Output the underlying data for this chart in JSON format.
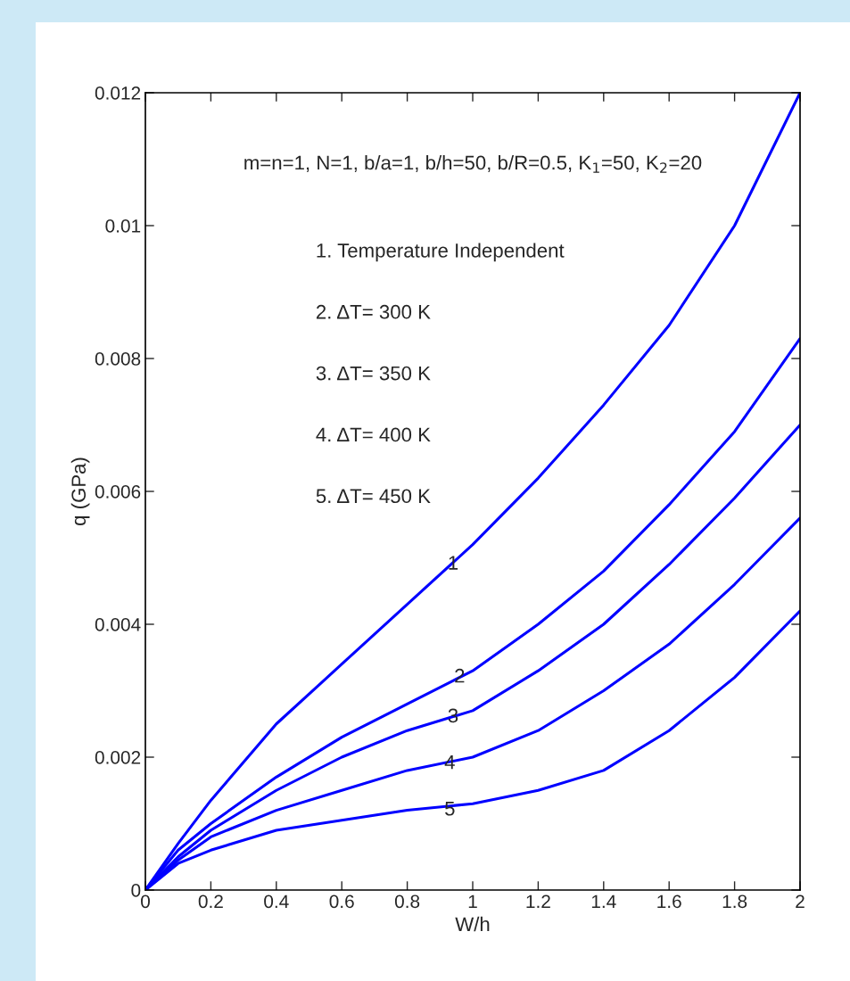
{
  "chart_data": {
    "type": "line",
    "xlabel": "W/h",
    "ylabel": "q (GPa)",
    "x": [
      0,
      0.1,
      0.2,
      0.4,
      0.6,
      0.8,
      1.0,
      1.2,
      1.4,
      1.6,
      1.8,
      2.0
    ],
    "series": [
      {
        "color": "#0000ff",
        "values": [
          0,
          0.0007,
          0.00135,
          0.0025,
          0.0034,
          0.0043,
          0.0052,
          0.0062,
          0.0073,
          0.0085,
          0.01,
          0.012
        ]
      },
      {
        "color": "#0000ff",
        "values": [
          0,
          0.0006,
          0.001,
          0.0017,
          0.0023,
          0.0028,
          0.0033,
          0.004,
          0.0048,
          0.0058,
          0.0069,
          0.0083
        ]
      },
      {
        "color": "#0000ff",
        "values": [
          0,
          0.0005,
          0.0009,
          0.0015,
          0.002,
          0.0024,
          0.0027,
          0.0033,
          0.004,
          0.0049,
          0.0059,
          0.007
        ]
      },
      {
        "color": "#0000ff",
        "values": [
          0,
          0.00045,
          0.0008,
          0.0012,
          0.0015,
          0.0018,
          0.002,
          0.0024,
          0.003,
          0.0037,
          0.0046,
          0.0056
        ]
      },
      {
        "color": "#0000ff",
        "values": [
          0,
          0.0004,
          0.0006,
          0.0009,
          0.00105,
          0.0012,
          0.0013,
          0.0015,
          0.0018,
          0.0024,
          0.0032,
          0.0042
        ]
      }
    ],
    "xlim": [
      0,
      2
    ],
    "ylim": [
      0,
      0.012
    ],
    "xticks": [
      0,
      0.2,
      0.4,
      0.6,
      0.8,
      1,
      1.2,
      1.4,
      1.6,
      1.8,
      2
    ],
    "yticks": [
      0,
      0.002,
      0.004,
      0.006,
      0.008,
      0.01,
      0.012
    ],
    "grid": false,
    "legend": false,
    "marker": "none",
    "line_style": "solid",
    "annotations": [
      "m=n=1, N=1, b/a=1, b/h=50, b/R=0.5, K$_{1}$=50, K$_{2}$=20",
      "1. Temperature Independent",
      "2. ΔT= 300 K",
      "3. ΔT= 350 K",
      "4. ΔT= 400 K",
      "5. ΔT= 450 K",
      {
        "text": "1",
        "x": 0.94,
        "y": 0.0049
      },
      {
        "text": "2",
        "x": 0.96,
        "y": 0.0032
      },
      {
        "text": "3",
        "x": 0.94,
        "y": 0.0026
      },
      {
        "text": "4",
        "x": 0.93,
        "y": 0.0019
      },
      {
        "text": "5",
        "x": 0.93,
        "y": 0.0012
      }
    ]
  }
}
